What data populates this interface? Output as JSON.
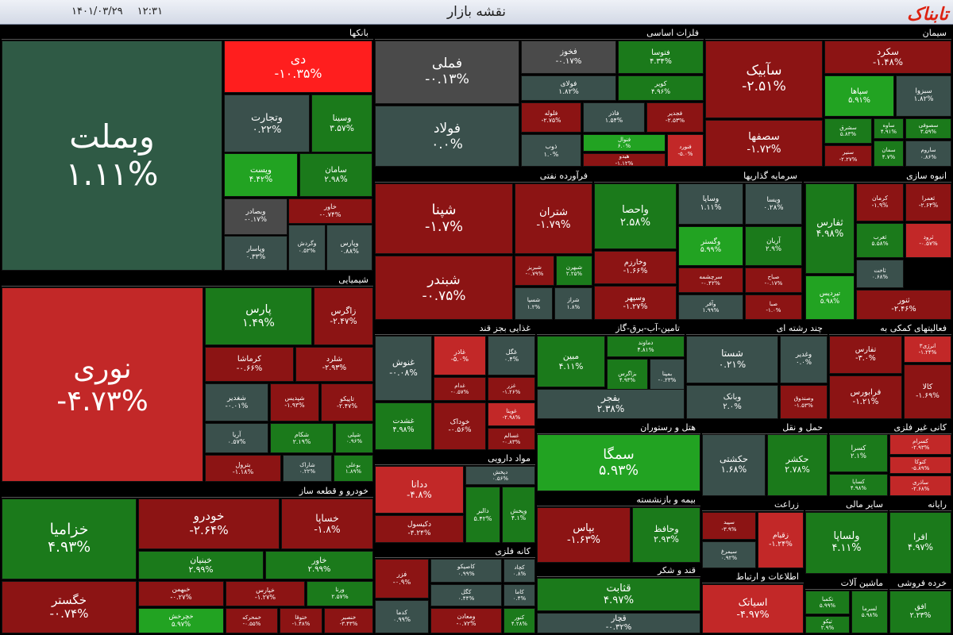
{
  "header": {
    "title": "نقشه بازار",
    "date": "۱۴۰۱/۰۳/۲۹",
    "time": "۱۲:۳۱",
    "logo": "تابناک"
  },
  "sectors": [
    {
      "name": "بانکها",
      "tiles": [
        {
          "name": "وبملت",
          "change": "۱.۱۱%"
        },
        {
          "name": "دی",
          "change": "-۱۰.۳۵%"
        },
        {
          "name": "وتجارت",
          "change": "۰.۲۲%"
        },
        {
          "name": "وسینا",
          "change": "۳.۵۷%"
        },
        {
          "name": "ویست",
          "change": "۴.۴۲%"
        },
        {
          "name": "سامان",
          "change": "۲.۹۸%"
        },
        {
          "name": "وبصادر",
          "change": "-۰.۱۷%"
        },
        {
          "name": "خاور",
          "change": "-۰.۷۴%"
        },
        {
          "name": "وپاسار",
          "change": "۰.۳۳%"
        },
        {
          "name": "وگردش",
          "change": "۰.۵۲%"
        },
        {
          "name": "وپارس",
          "change": "۰.۸۸%"
        }
      ]
    },
    {
      "name": "شیمیایی",
      "tiles": [
        {
          "name": "نوری",
          "change": "-۴.۷۳%"
        },
        {
          "name": "پارس",
          "change": "۱.۴۹%"
        },
        {
          "name": "زاگرس",
          "change": "-۲.۴۷%"
        },
        {
          "name": "کرماشا",
          "change": "-۰.۶۶%"
        },
        {
          "name": "شلرد",
          "change": "-۲.۹۳%"
        },
        {
          "name": "شغدیر",
          "change": "-۰.۰۱%"
        },
        {
          "name": "شپدیس",
          "change": "-۱.۹۳%"
        },
        {
          "name": "تاپیکو",
          "change": "-۲.۴۷%"
        },
        {
          "name": "آریا",
          "change": "۰.۵۷%"
        },
        {
          "name": "شکام",
          "change": "۲.۱۹%"
        },
        {
          "name": "شپلی",
          "change": "۰.۹۶%"
        },
        {
          "name": "بترول",
          "change": "-۱.۱۸%"
        },
        {
          "name": "شاراک",
          "change": "۰.۲۲%"
        },
        {
          "name": "بوعلی",
          "change": "۱.۸۹%"
        }
      ]
    },
    {
      "name": "خودرو و قطعه ساز",
      "tiles": [
        {
          "name": "خزامیا",
          "change": "۴.۹۳%"
        },
        {
          "name": "خودرو",
          "change": "-۲.۶۴%"
        },
        {
          "name": "خساپا",
          "change": "-۱.۸%"
        },
        {
          "name": "خبنیان",
          "change": "۲.۹۹%"
        },
        {
          "name": "خاور",
          "change": "۲.۹۹%"
        },
        {
          "name": "خگستر",
          "change": "-۰.۷۴%"
        },
        {
          "name": "خبهمن",
          "change": "-۰.۲۷%"
        },
        {
          "name": "خپارس",
          "change": "-۱.۲۷%"
        },
        {
          "name": "ورنا",
          "change": "۲.۵۷%"
        },
        {
          "name": "خچرخش",
          "change": "۵.۹۷%"
        },
        {
          "name": "خمحرکه",
          "change": "-۰.۵۵%"
        },
        {
          "name": "ختوقا",
          "change": "-۱.۴۸%"
        },
        {
          "name": "خنصیر",
          "change": "-۳.۴۳%"
        }
      ]
    },
    {
      "name": "فلزات اساسی",
      "tiles": [
        {
          "name": "فملی",
          "change": "-۰.۱۳%"
        },
        {
          "name": "فولاد",
          "change": "۰.۰%"
        },
        {
          "name": "فخوز",
          "change": "-۰.۱۷%"
        },
        {
          "name": "فولای",
          "change": "۱.۸۲%"
        },
        {
          "name": "فتوسا",
          "change": "۴.۳۴%"
        },
        {
          "name": "کویر",
          "change": "۴.۹۶%"
        },
        {
          "name": "فلوله",
          "change": "-۲.۷۵%"
        },
        {
          "name": "فاذر",
          "change": "۱.۵۴%"
        },
        {
          "name": "فجدیر",
          "change": "-۲.۵۳%"
        },
        {
          "name": "ذوب",
          "change": "۱.۰%"
        },
        {
          "name": "فنوال",
          "change": "۶.۰%"
        },
        {
          "name": "هیدو",
          "change": "-۱.۱۲%"
        },
        {
          "name": "فنورد",
          "change": "-۵.۰%"
        }
      ]
    },
    {
      "name": "سیمان",
      "tiles": [
        {
          "name": "سآبیک",
          "change": "-۲.۵۱%"
        },
        {
          "name": "سصفها",
          "change": "-۱.۷۲%"
        },
        {
          "name": "سکرد",
          "change": "-۱.۴۸%"
        },
        {
          "name": "سپاها",
          "change": "۵.۹۱%"
        },
        {
          "name": "سبزوا",
          "change": "۱.۸۲%"
        },
        {
          "name": "سشرق",
          "change": "۵.۸۳%"
        },
        {
          "name": "ساوه",
          "change": "۴.۹۱%"
        },
        {
          "name": "سصوفی",
          "change": "۳.۵۹%"
        },
        {
          "name": "سنیر",
          "change": "-۲.۲۷%"
        },
        {
          "name": "سمان",
          "change": "۴.۷%"
        },
        {
          "name": "ساروم",
          "change": "۰.۸۶%"
        }
      ]
    },
    {
      "name": "فرآورده نفتی",
      "tiles": [
        {
          "name": "شپنا",
          "change": "-۱.۷%"
        },
        {
          "name": "شتران",
          "change": "-۱.۷۹%"
        },
        {
          "name": "شبندر",
          "change": "-۰.۷۵%"
        },
        {
          "name": "شبریز",
          "change": "-۰.۷۹%"
        },
        {
          "name": "شبهرن",
          "change": "۲.۲۵%"
        },
        {
          "name": "شسپا",
          "change": "۱.۲%"
        },
        {
          "name": "شراز",
          "change": "۱.۸%"
        }
      ]
    },
    {
      "name": "سرمایه گذاریها",
      "tiles": [
        {
          "name": "واحصا",
          "change": "۲.۵۸%"
        },
        {
          "name": "وساپا",
          "change": "۱.۱۱%"
        },
        {
          "name": "ویسا",
          "change": "۰.۲۸%"
        },
        {
          "name": "وگستر",
          "change": "۵.۹۹%"
        },
        {
          "name": "آریان",
          "change": "۲.۹%"
        },
        {
          "name": "وخارزم",
          "change": "-۱.۶۶%"
        },
        {
          "name": "سرچشمه",
          "change": "-۰.۴۲%"
        },
        {
          "name": "صباح",
          "change": "-۰.۱۷%"
        },
        {
          "name": "وسپهر",
          "change": "-۱.۲۷%"
        },
        {
          "name": "وآفر",
          "change": "۱.۹۹%"
        },
        {
          "name": "صبا",
          "change": "-۱.۰%"
        }
      ]
    },
    {
      "name": "انبوه سازی",
      "tiles": [
        {
          "name": "ثفارس",
          "change": "۴.۹۸%"
        },
        {
          "name": "کرمان",
          "change": "-۱.۹%"
        },
        {
          "name": "ثعمرا",
          "change": "-۲.۶۴%"
        },
        {
          "name": "ثغرب",
          "change": "۵.۵۸%"
        },
        {
          "name": "ثرود",
          "change": "-۰.۵۷%"
        },
        {
          "name": "تیردیس",
          "change": "۵.۹۸%"
        },
        {
          "name": "ثاخت",
          "change": "۰.۶۸%"
        },
        {
          "name": "ثنور",
          "change": "-۲.۴۶%"
        }
      ]
    },
    {
      "name": "غذایی بجز قند",
      "tiles": [
        {
          "name": "غنوش",
          "change": "-۰.۰۸%"
        },
        {
          "name": "غشدت",
          "change": "۴.۹۸%"
        },
        {
          "name": "غاذر",
          "change": "-۵.۰%"
        },
        {
          "name": "غگل",
          "change": "۰.۴%"
        },
        {
          "name": "غدام",
          "change": "-۰.۵۷%"
        },
        {
          "name": "غزر",
          "change": "-۱.۲۶%"
        },
        {
          "name": "خوداک",
          "change": "-۰.۵۶%"
        },
        {
          "name": "غویتا",
          "change": "-۲.۹۸%"
        },
        {
          "name": "غسالم",
          "change": "-۰.۸۳%"
        }
      ]
    },
    {
      "name": "مواد دارویی",
      "tiles": [
        {
          "name": "ددانا",
          "change": "-۴.۸%"
        },
        {
          "name": "دکیسول",
          "change": "-۴.۲۴%"
        },
        {
          "name": "دپخش",
          "change": "۰.۵۶%"
        },
        {
          "name": "دالبر",
          "change": "۵.۴۲%"
        },
        {
          "name": "وپخش",
          "change": "۴.۱%"
        }
      ]
    },
    {
      "name": "کانه فلزی",
      "tiles": [
        {
          "name": "فزر",
          "change": "-۰.۹%"
        },
        {
          "name": "کدما",
          "change": "۰.۹۹%"
        },
        {
          "name": "کاصیکو",
          "change": "۰.۹۹%"
        },
        {
          "name": "کچاد",
          "change": "۰.۸%"
        },
        {
          "name": "کگل",
          "change": "۰.۴۴%"
        },
        {
          "name": "کاما",
          "change": "۰.۴%"
        },
        {
          "name": "ومعادن",
          "change": "-۰.۷۲%"
        },
        {
          "name": "کنور",
          "change": "۴.۲۸%"
        }
      ]
    },
    {
      "name": "تامین-آب-برق-گاز",
      "tiles": [
        {
          "name": "مبین",
          "change": "۴.۱۱%"
        },
        {
          "name": "دماوند",
          "change": "۴.۸۱%"
        },
        {
          "name": "بزاگرس",
          "change": "۴.۹۳%"
        },
        {
          "name": "بمپنا",
          "change": "-۰.۲۳%"
        },
        {
          "name": "بفجر",
          "change": "۲.۳۸%"
        }
      ]
    },
    {
      "name": "چند رشته ای",
      "tiles": [
        {
          "name": "شستا",
          "change": "۰.۲۱%"
        },
        {
          "name": "وغدیر",
          "change": "۰.۰%"
        },
        {
          "name": "وبانک",
          "change": "۲.۰%"
        },
        {
          "name": "وصندوق",
          "change": "-۱.۵۳%"
        }
      ]
    },
    {
      "name": "فعالیتهای کمکی به",
      "tiles": [
        {
          "name": "تفارس",
          "change": "-۳.۰%"
        },
        {
          "name": "انرژی۳",
          "change": "-۱.۲۴%"
        },
        {
          "name": "کالا",
          "change": "-۱.۶۹%"
        },
        {
          "name": "فرابورس",
          "change": "-۱.۲۱%"
        }
      ]
    },
    {
      "name": "هتل و رستوران",
      "tiles": [
        {
          "name": "سمگا",
          "change": "۵.۹۳%"
        }
      ]
    },
    {
      "name": "حمل و نقل",
      "tiles": [
        {
          "name": "حکشتی",
          "change": "۱.۶۸%"
        },
        {
          "name": "حکشر",
          "change": "۲.۷۸%"
        }
      ]
    },
    {
      "name": "کانی غیر فلزی",
      "tiles": [
        {
          "name": "کسرا",
          "change": "۲.۱%"
        },
        {
          "name": "کساپا",
          "change": "۴.۹۸%"
        },
        {
          "name": "کسرام",
          "change": "-۲.۹۳%"
        },
        {
          "name": "کتوکا",
          "change": "-۵.۸۹%"
        },
        {
          "name": "ساذری",
          "change": "-۲.۶۸%"
        }
      ]
    },
    {
      "name": "بیمه و بازنشسته",
      "tiles": [
        {
          "name": "بپاس",
          "change": "-۱.۶۳%"
        },
        {
          "name": "وحافظ",
          "change": "۲.۹۳%"
        }
      ]
    },
    {
      "name": "زراعت",
      "tiles": [
        {
          "name": "سپید",
          "change": "-۳.۹%"
        },
        {
          "name": "زقیام",
          "change": "-۱.۲۴%"
        },
        {
          "name": "سیمرغ",
          "change": "۰.۹۲%"
        }
      ]
    },
    {
      "name": "سایر مالی",
      "tiles": [
        {
          "name": "ولساپا",
          "change": "۴.۱۱%"
        }
      ]
    },
    {
      "name": "رایانه",
      "tiles": [
        {
          "name": "افرا",
          "change": "۴.۹۷%"
        }
      ]
    },
    {
      "name": "قند و شکر",
      "tiles": [
        {
          "name": "قثابت",
          "change": "۴.۹۷%"
        },
        {
          "name": "قچار",
          "change": "-۰.۳۲%"
        }
      ]
    },
    {
      "name": "اطلاعات و ارتباط",
      "tiles": [
        {
          "name": "اسیاتک",
          "change": "-۴.۹۷%"
        }
      ]
    },
    {
      "name": "ماشین آلات",
      "tiles": [
        {
          "name": "تکمبا",
          "change": "۵.۹۹%"
        },
        {
          "name": "تیکو",
          "change": "۲.۹%"
        },
        {
          "name": "لسرما",
          "change": "۵.۹۸%"
        }
      ]
    },
    {
      "name": "خرده فروشی",
      "tiles": [
        {
          "name": "افق",
          "change": "۲.۲۳%"
        }
      ]
    }
  ]
}
